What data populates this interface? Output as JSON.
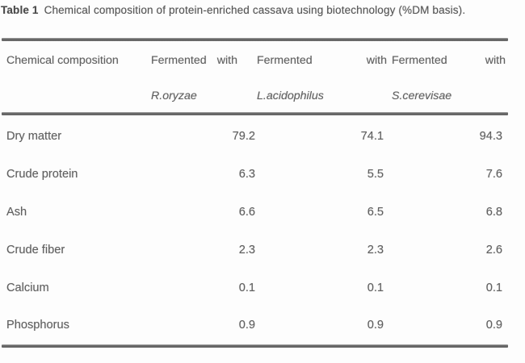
{
  "caption": {
    "label": "Table 1",
    "text": "Chemical composition of protein-enriched cassava using biotechnology (%DM basis)."
  },
  "table": {
    "header": {
      "row_label": "Chemical composition",
      "columns": [
        {
          "word1": "Fermented",
          "word2": "with",
          "organism": "R.oryzae"
        },
        {
          "word1": "Fermented",
          "word2": "with",
          "organism": "L.acidophilus"
        },
        {
          "word1": "Fermented",
          "word2": "with",
          "organism": "S.cerevisae"
        }
      ]
    },
    "rows": [
      {
        "label": "Dry matter",
        "values": [
          "79.2",
          "74.1",
          "94.3"
        ]
      },
      {
        "label": "Crude protein",
        "values": [
          "6.3",
          "5.5",
          "7.6"
        ]
      },
      {
        "label": "Ash",
        "values": [
          "6.6",
          "6.5",
          "6.8"
        ]
      },
      {
        "label": "Crude fiber",
        "values": [
          "2.3",
          "2.3",
          "2.6"
        ]
      },
      {
        "label": "Calcium",
        "values": [
          "0.1",
          "0.1",
          "0.1"
        ]
      },
      {
        "label": "Phosphorus",
        "values": [
          "0.9",
          "0.9",
          "0.9"
        ]
      }
    ]
  },
  "colors": {
    "background": "#fdfdfd",
    "text": "#606060",
    "rule": "#5f5f5f"
  }
}
